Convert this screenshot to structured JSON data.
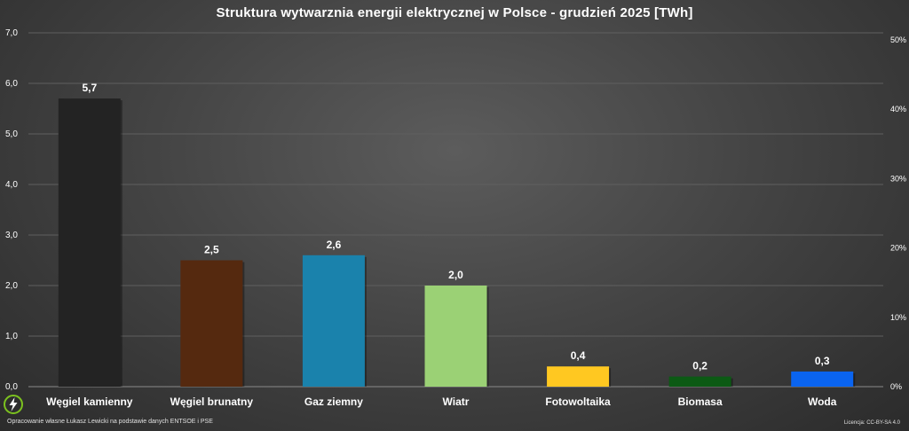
{
  "chart_data": {
    "type": "bar",
    "title": "Struktura wytwarznia energii elektrycznej w Polsce - grudzień 2025 [TWh]",
    "categories": [
      "Węgiel kamienny",
      "Węgiel brunatny",
      "Gaz ziemny",
      "Wiatr",
      "Fotowoltaika",
      "Biomasa",
      "Woda"
    ],
    "values": [
      5.7,
      2.5,
      2.6,
      2.0,
      0.4,
      0.2,
      0.3
    ],
    "data_labels": [
      "5,7",
      "2,5",
      "2,6",
      "2,0",
      "0,4",
      "0,2",
      "0,3"
    ],
    "colors": [
      "#232323",
      "#55290f",
      "#1a82ac",
      "#9bd175",
      "#ffc821",
      "#0c5a14",
      "#0a64f0"
    ],
    "ylim": [
      0,
      7
    ],
    "y_ticks": [
      "0,0",
      "1,0",
      "2,0",
      "3,0",
      "4,0",
      "5,0",
      "6,0",
      "7,0"
    ],
    "y2lim": [
      0,
      50
    ],
    "y2_ticks": [
      "0%",
      "10%",
      "20%",
      "30%",
      "40%",
      "50%"
    ],
    "grid": true,
    "legend": "none"
  },
  "footer": {
    "credit": "Opracowanie własne Łukasz Lewicki na podstawie danych ENTSOE i PSE",
    "license": "Licencja: CC-BY-SA 4.0"
  },
  "logo": {
    "icon": "lightning-bolt-icon",
    "accent": "#7cc21f"
  }
}
